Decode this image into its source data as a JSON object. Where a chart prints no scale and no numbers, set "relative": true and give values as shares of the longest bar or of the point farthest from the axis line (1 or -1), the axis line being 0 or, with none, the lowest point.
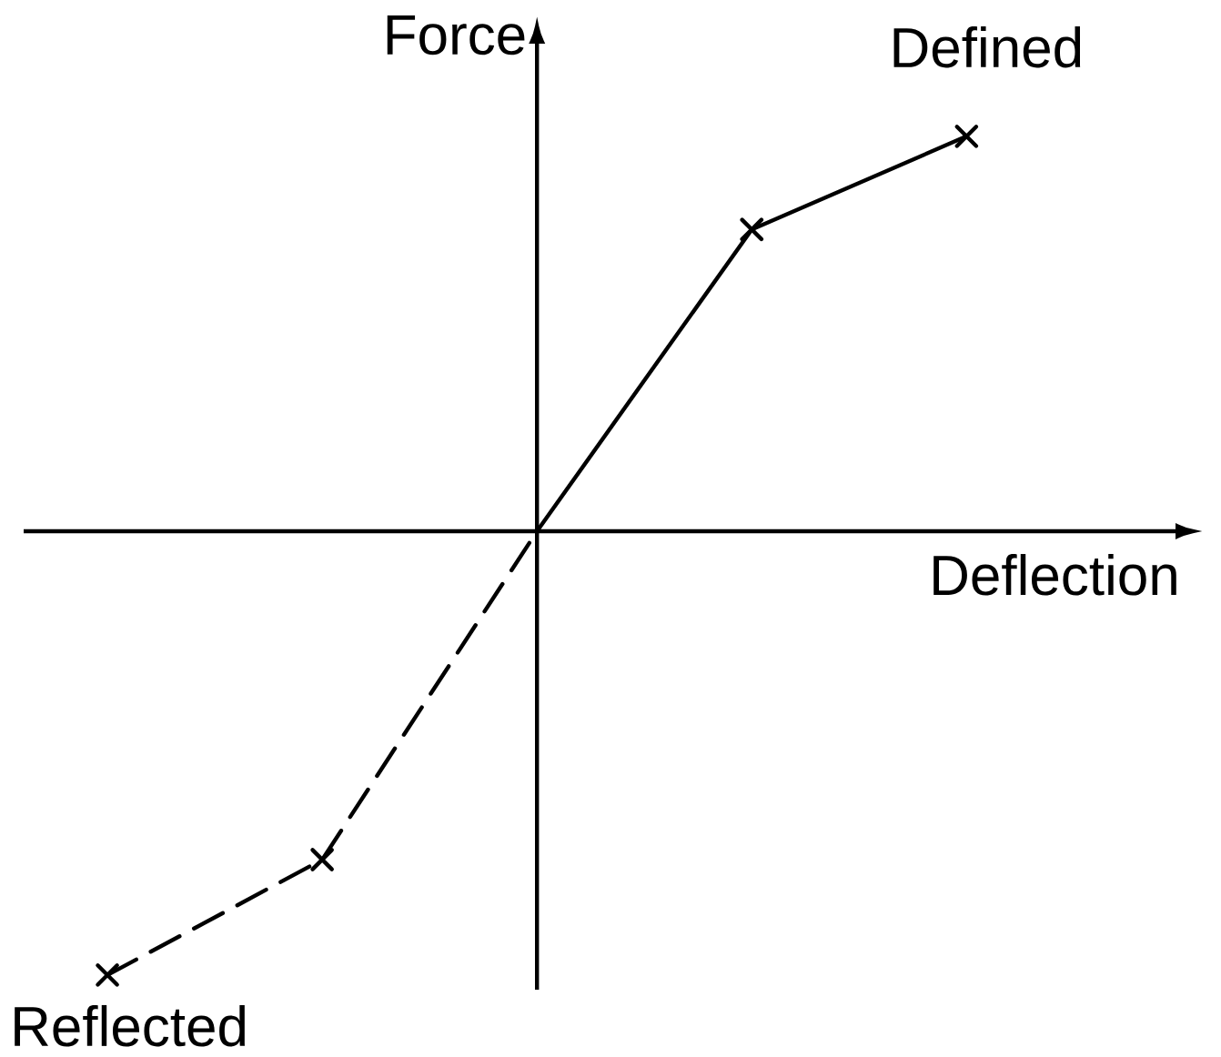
{
  "chart_data": {
    "type": "line",
    "xlabel": "Deflection",
    "ylabel": "Force",
    "relative": true,
    "tick_labels": false,
    "marker": "cross",
    "categories": [
      null,
      null,
      null,
      null,
      null
    ],
    "series": [
      {
        "name": "Defined",
        "color": "#000000",
        "line_style": "solid",
        "values": [
          null,
          null,
          0,
          0.68,
          0.89
        ]
      },
      {
        "name": "Reflected",
        "color": "#000000",
        "line_style": "dashed",
        "values": [
          -1,
          -0.74,
          0,
          null,
          null
        ]
      }
    ]
  }
}
